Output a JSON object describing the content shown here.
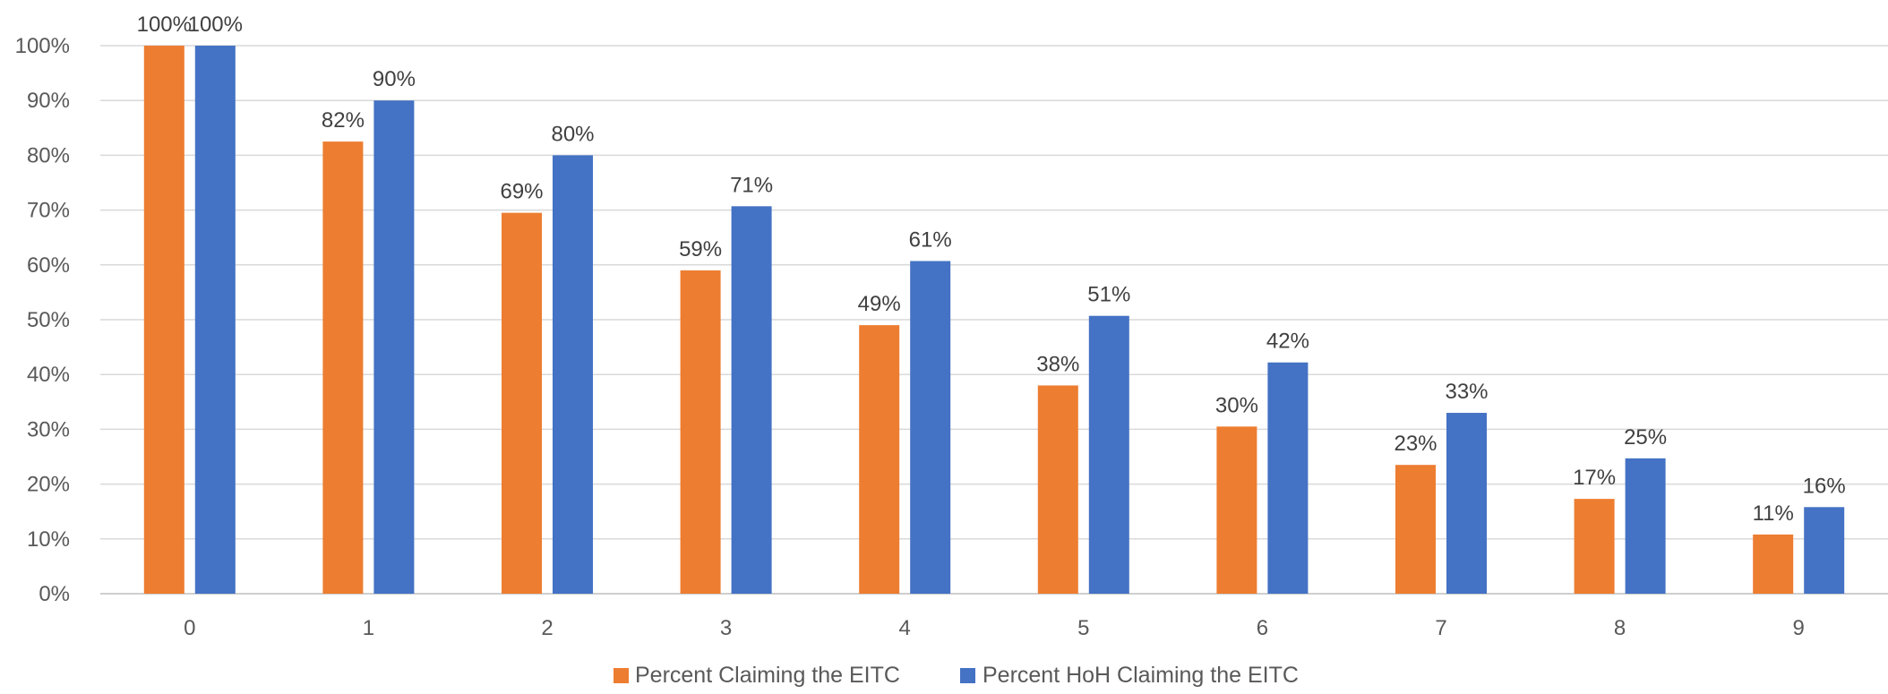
{
  "chart_data": {
    "type": "bar",
    "title": "",
    "xlabel": "",
    "ylabel": "",
    "categories": [
      "0",
      "1",
      "2",
      "3",
      "4",
      "5",
      "6",
      "7",
      "8",
      "9"
    ],
    "ylim": [
      0,
      100
    ],
    "y_ticks": [
      "0%",
      "10%",
      "20%",
      "30%",
      "40%",
      "50%",
      "60%",
      "70%",
      "80%",
      "90%",
      "100%"
    ],
    "grid": true,
    "legend_position": "bottom",
    "series": [
      {
        "name": "Percent Claiming the EITC",
        "color": "#ED7D31",
        "values": [
          100,
          82.5,
          69.5,
          59,
          49,
          38,
          30.5,
          23.5,
          17.3,
          10.8
        ],
        "labels": [
          "100%",
          "82%",
          "69%",
          "59%",
          "49%",
          "38%",
          "30%",
          "23%",
          "17%",
          "11%"
        ]
      },
      {
        "name": "Percent HoH Claiming the EITC",
        "color": "#4472C4",
        "values": [
          100,
          90,
          80,
          70.7,
          60.7,
          50.7,
          42.2,
          33,
          24.7,
          15.8
        ],
        "labels": [
          "100%",
          "90%",
          "80%",
          "71%",
          "61%",
          "51%",
          "42%",
          "33%",
          "25%",
          "16%"
        ]
      }
    ]
  }
}
